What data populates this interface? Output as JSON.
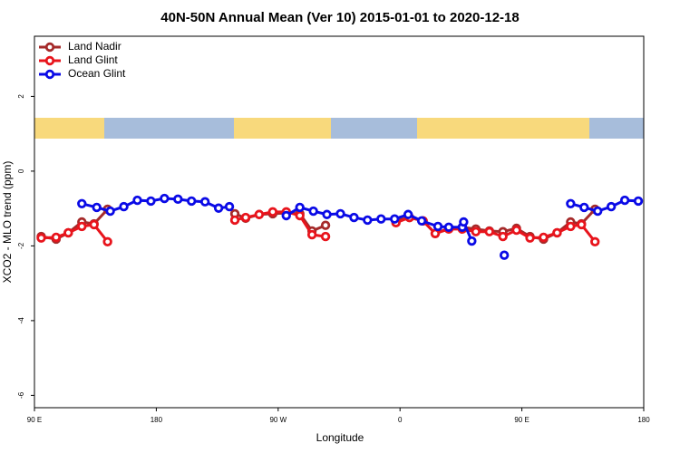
{
  "chart_data": {
    "type": "line",
    "title": "40N-50N Annual Mean (Ver 10)   2015-01-01 to 2020-12-18",
    "xlabel": "Longitude",
    "ylabel": "XCO2 - MLO trend (ppm)",
    "xlim": [
      90,
      540
    ],
    "ylim": [
      -6.33,
      3.61
    ],
    "xticks": [
      {
        "value": 90,
        "label": "90 E"
      },
      180,
      {
        "value": 270,
        "label": "90 W"
      },
      {
        "value": 360,
        "label": "0"
      },
      {
        "value": 450,
        "label": "90 E"
      },
      {
        "value": 540,
        "label": "180"
      }
    ],
    "yticks": [
      2,
      0,
      -2,
      -4,
      -6
    ],
    "legend": "upper left",
    "series": [
      {
        "name": "Land Nadir",
        "color": "#a52a2a",
        "x": [
          95,
          106,
          115,
          125,
          134,
          144,
          null,
          238,
          246,
          256,
          266,
          276,
          286,
          295,
          305,
          null,
          357,
          367,
          377,
          386,
          396,
          406,
          416,
          426,
          436,
          446,
          456,
          466,
          476,
          486,
          494,
          504
        ],
        "values": [
          -1.75,
          -1.82,
          -1.65,
          -1.36,
          -1.41,
          -1.02,
          null,
          -1.14,
          -1.26,
          -1.16,
          -1.14,
          -1.12,
          -1.14,
          -1.6,
          -1.45,
          null,
          -1.33,
          -1.24,
          -1.33,
          -1.67,
          -1.53,
          -1.5,
          -1.55,
          -1.6,
          -1.62,
          -1.53,
          -1.75,
          -1.82,
          -1.65,
          -1.36,
          -1.41,
          -1.02
        ]
      },
      {
        "name": "Land Glint",
        "color": "#e8141c",
        "x": [
          95,
          106,
          115,
          125,
          134,
          144,
          null,
          238,
          246,
          256,
          266,
          276,
          286,
          295,
          305,
          null,
          357,
          367,
          377,
          386,
          396,
          406,
          416,
          426,
          436,
          446,
          456,
          466,
          476,
          486,
          494,
          504
        ],
        "values": [
          -1.79,
          -1.77,
          -1.65,
          -1.48,
          -1.43,
          -1.89,
          null,
          -1.31,
          -1.24,
          -1.16,
          -1.09,
          -1.09,
          -1.19,
          -1.7,
          -1.75,
          null,
          -1.38,
          -1.24,
          -1.33,
          -1.67,
          -1.55,
          -1.55,
          -1.62,
          -1.62,
          -1.75,
          -1.58,
          -1.79,
          -1.77,
          -1.65,
          -1.48,
          -1.43,
          -1.89
        ]
      },
      {
        "name": "Ocean Glint",
        "color": "#0a0ae6",
        "x": [
          125,
          136,
          146,
          156,
          166,
          176,
          186,
          196,
          206,
          216,
          226,
          234,
          null,
          276,
          286,
          296,
          306,
          316,
          326,
          336,
          346,
          356,
          366,
          376,
          388,
          396,
          406,
          407,
          413,
          null,
          437,
          null,
          486,
          496,
          506,
          516,
          526,
          536
        ],
        "values": [
          -0.87,
          -0.97,
          -1.07,
          -0.95,
          -0.78,
          -0.8,
          -0.73,
          -0.75,
          -0.8,
          -0.82,
          -0.99,
          -0.95,
          null,
          -1.19,
          -0.97,
          -1.07,
          -1.16,
          -1.14,
          -1.24,
          -1.31,
          -1.28,
          -1.28,
          -1.16,
          -1.33,
          -1.48,
          -1.5,
          -1.5,
          -1.36,
          -1.87,
          null,
          -2.25,
          null,
          -0.87,
          -0.97,
          -1.07,
          -0.95,
          -0.78,
          -0.8
        ]
      }
    ]
  }
}
